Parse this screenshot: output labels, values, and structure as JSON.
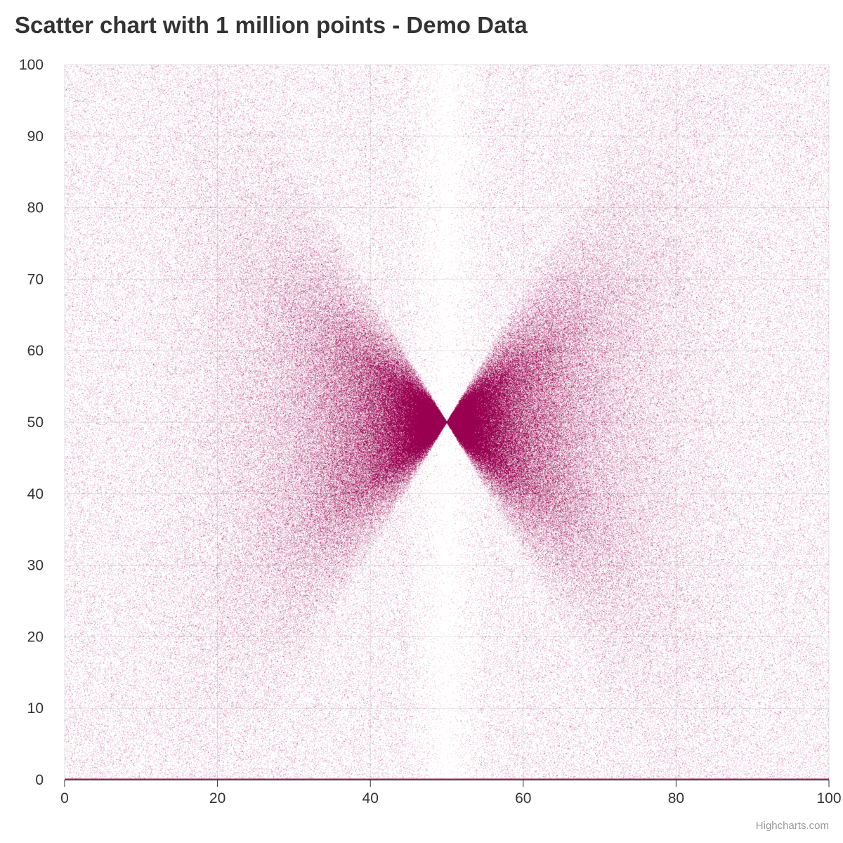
{
  "chart_data": {
    "type": "scatter",
    "title": "Scatter chart with 1 million points - Demo Data",
    "xlabel": "",
    "ylabel": "",
    "xlim": [
      0,
      100
    ],
    "ylim": [
      0,
      100
    ],
    "x_ticks": [
      "0",
      "20",
      "40",
      "60",
      "80",
      "100"
    ],
    "y_ticks": [
      "0",
      "10",
      "20",
      "30",
      "40",
      "50",
      "60",
      "70",
      "80",
      "90",
      "100"
    ],
    "grid": true,
    "legend": "none",
    "series": [
      {
        "point_count": 1000000,
        "color": "#990050",
        "distribution": {
          "center": [
            50,
            50
          ],
          "sparse_band_x": [
            46,
            54
          ],
          "diagonal_lobes": "dense toward the center, fading outward along both diagonals",
          "background": "uniform over the full 0-100 range"
        }
      }
    ]
  },
  "credits": "Highcharts.com",
  "colors": {
    "series": "#990050",
    "grid": "#e6e6e6",
    "axis": "#333333",
    "title": "#333333",
    "credits": "#999999"
  }
}
